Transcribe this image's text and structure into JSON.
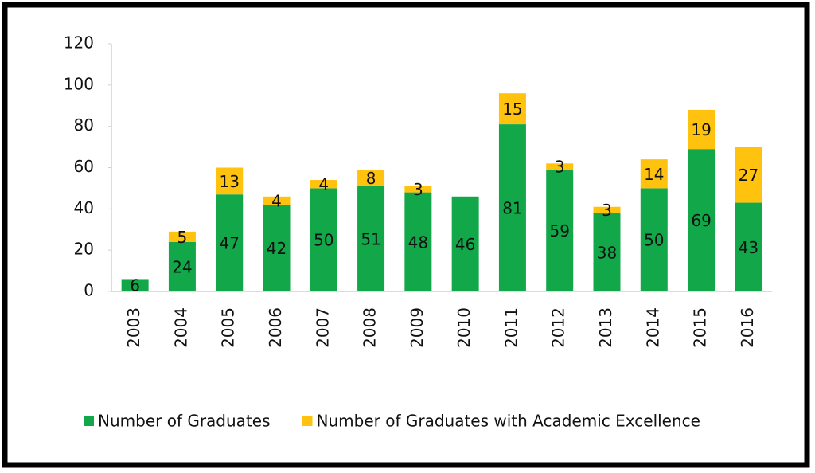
{
  "chart_data": {
    "type": "stacked_bar",
    "categories": [
      "2003",
      "2004",
      "2005",
      "2006",
      "2007",
      "2008",
      "2009",
      "2010",
      "2011",
      "2012",
      "2013",
      "2014",
      "2015",
      "2016"
    ],
    "series": [
      {
        "name": "Number of Graduates",
        "color": "#12a84a",
        "values": [
          6,
          24,
          47,
          42,
          50,
          51,
          48,
          46,
          81,
          59,
          38,
          50,
          69,
          43
        ]
      },
      {
        "name": "Number of Graduates with Academic Excellence",
        "color": "#ffc20e",
        "values": [
          null,
          5,
          13,
          4,
          4,
          8,
          3,
          null,
          15,
          3,
          3,
          14,
          19,
          27
        ]
      }
    ],
    "ylim": [
      0,
      120
    ],
    "yticks": [
      0,
      20,
      40,
      60,
      80,
      100,
      120
    ],
    "grid": false,
    "legend": "bottom"
  }
}
